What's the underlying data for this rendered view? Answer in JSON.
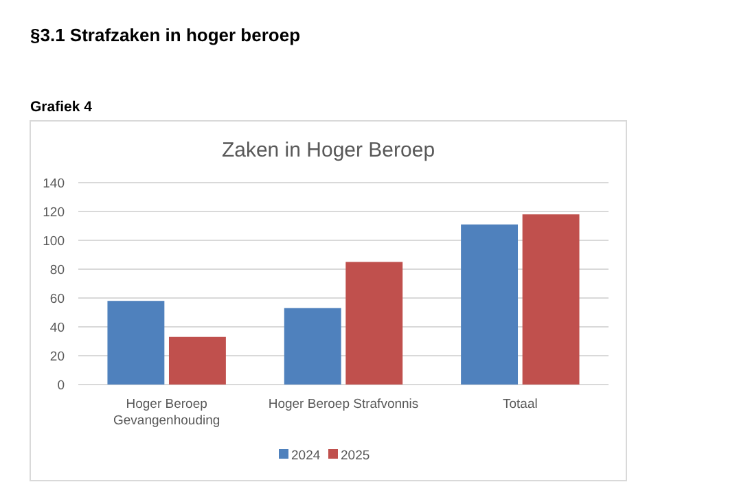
{
  "chart_data": {
    "type": "bar",
    "title": "Zaken in Hoger Beroep",
    "annotations": [
      "§3.1 Strafzaken in hoger beroep",
      "Grafiek 4"
    ],
    "categories": [
      "Hoger Beroep Gevangenhouding",
      "Hoger Beroep Strafvonnis",
      "Totaal"
    ],
    "series": [
      {
        "name": "2024",
        "color": "#4f81bd",
        "values": [
          58,
          53,
          111
        ]
      },
      {
        "name": "2025",
        "color": "#c0504d",
        "values": [
          33,
          85,
          118
        ]
      }
    ],
    "ylim": [
      0,
      140
    ],
    "yticks": [
      0,
      20,
      40,
      60,
      80,
      100,
      120,
      140
    ],
    "grid": "y",
    "legend": "bottom"
  }
}
